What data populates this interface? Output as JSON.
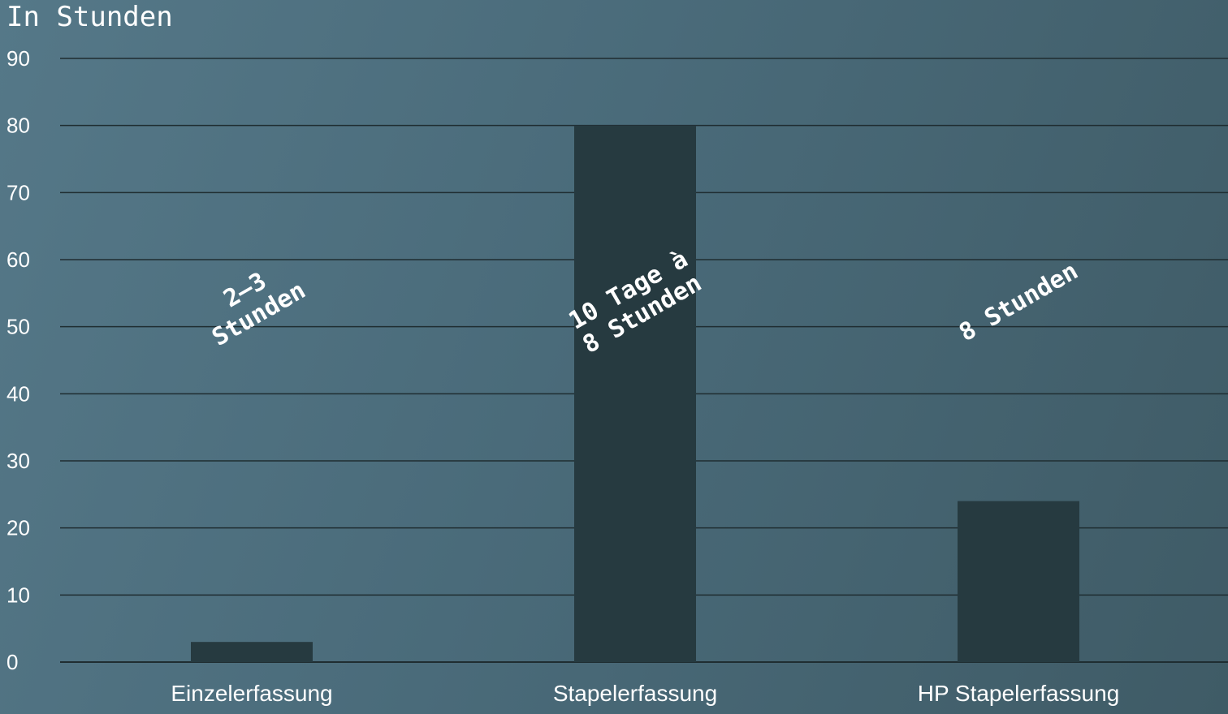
{
  "chart_data": {
    "type": "bar",
    "title": "In Stunden",
    "xlabel": "",
    "ylabel": "",
    "categories": [
      "Einzelerfassung",
      "Stapelerfassung",
      "HP Stapelerfassung"
    ],
    "values": [
      3,
      80,
      24
    ],
    "annotations": [
      [
        "2–3",
        "Stunden"
      ],
      [
        "10 Tage à",
        "8 Stunden"
      ],
      [
        "8 Stunden"
      ]
    ],
    "yticks": [
      0,
      10,
      20,
      30,
      40,
      50,
      60,
      70,
      80,
      90
    ],
    "ylim": [
      0,
      90
    ],
    "grid": true,
    "legend": "none",
    "colors": {
      "bar": "#263a40",
      "gridline": "#1f2d31",
      "text": "#ffffff"
    }
  }
}
